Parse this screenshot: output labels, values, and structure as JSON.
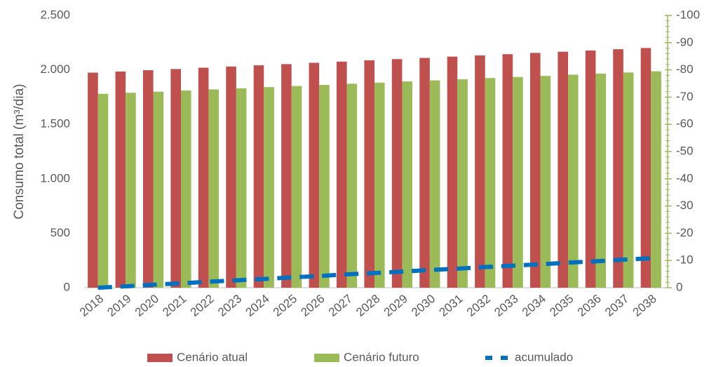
{
  "chart_data": {
    "type": "bar",
    "y_label": "Consumo total (m³/dia)",
    "categories": [
      "2018",
      "2019",
      "2020",
      "2021",
      "2022",
      "2023",
      "2024",
      "2025",
      "2026",
      "2027",
      "2028",
      "2029",
      "2030",
      "2031",
      "2032",
      "2033",
      "2034",
      "2035",
      "2036",
      "2037",
      "2038"
    ],
    "series": [
      {
        "name": "Cenário atual",
        "color": "#c0504d",
        "type": "bar",
        "values": [
          1975,
          1985,
          1997,
          2008,
          2020,
          2031,
          2042,
          2053,
          2065,
          2076,
          2088,
          2099,
          2110,
          2122,
          2133,
          2144,
          2156,
          2167,
          2178,
          2190,
          2201
        ]
      },
      {
        "name": "Cenário futuro",
        "color": "#9bbb59",
        "type": "bar",
        "values": [
          1780,
          1790,
          1800,
          1811,
          1821,
          1831,
          1842,
          1852,
          1862,
          1873,
          1883,
          1894,
          1904,
          1914,
          1925,
          1935,
          1945,
          1956,
          1966,
          1976,
          1987
        ]
      },
      {
        "name": "acumulado",
        "color": "#0070c0",
        "type": "line",
        "axis": "y2",
        "values": [
          0,
          -0.5,
          -1.1,
          -1.6,
          -2.2,
          -2.7,
          -3.2,
          -3.8,
          -4.3,
          -4.9,
          -5.4,
          -5.9,
          -6.5,
          -7.0,
          -7.6,
          -8.1,
          -8.6,
          -9.2,
          -9.7,
          -10.3,
          -10.8
        ]
      }
    ],
    "ylim": [
      0,
      2500
    ],
    "yticks": [
      0,
      500,
      {
        "value": 1000,
        "label": "1.000"
      },
      {
        "value": 1500,
        "label": "1.500"
      },
      {
        "value": 2000,
        "label": "2.000"
      },
      {
        "value": 2500,
        "label": "2.500"
      }
    ],
    "y2lim": [
      0,
      -100
    ],
    "y2ticks": [
      0,
      -10,
      -20,
      -30,
      -40,
      -50,
      -60,
      -70,
      -80,
      -90,
      -100
    ]
  }
}
